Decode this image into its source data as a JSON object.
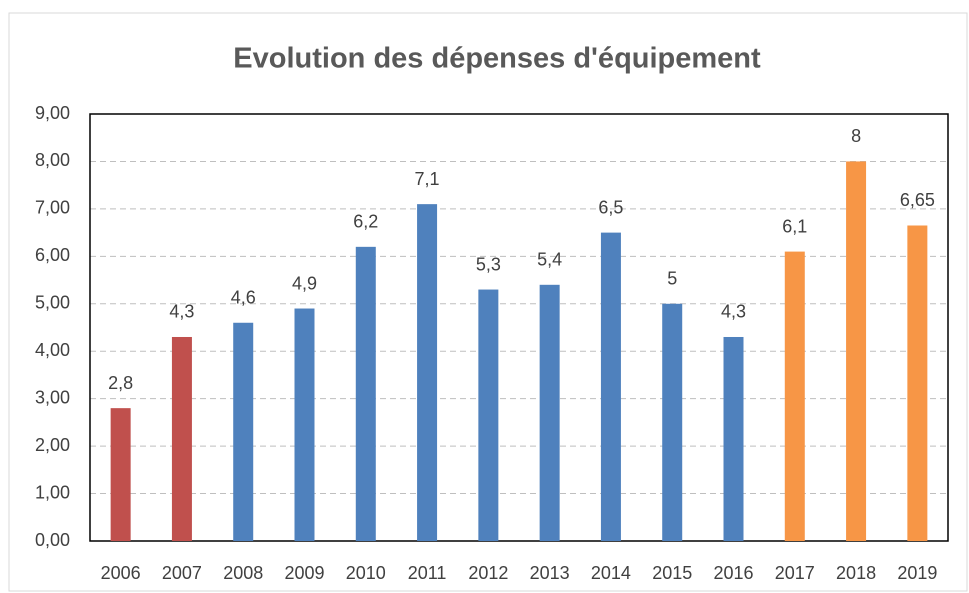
{
  "chart_data": {
    "type": "bar",
    "title": "Evolution des dépenses d'équipement",
    "categories": [
      "2006",
      "2007",
      "2008",
      "2009",
      "2010",
      "2011",
      "2012",
      "2013",
      "2014",
      "2015",
      "2016",
      "2017",
      "2018",
      "2019"
    ],
    "values": [
      2.8,
      4.3,
      4.6,
      4.9,
      6.2,
      7.1,
      5.3,
      5.4,
      6.5,
      5,
      4.3,
      6.1,
      8,
      6.65
    ],
    "value_labels": [
      "2,8",
      "4,3",
      "4,6",
      "4,9",
      "6,2",
      "7,1",
      "5,3",
      "5,4",
      "6,5",
      "5",
      "4,3",
      "6,1",
      "8",
      "6,65"
    ],
    "colors": [
      "#c0504d",
      "#c0504d",
      "#4f81bd",
      "#4f81bd",
      "#4f81bd",
      "#4f81bd",
      "#4f81bd",
      "#4f81bd",
      "#4f81bd",
      "#4f81bd",
      "#4f81bd",
      "#f79646",
      "#f79646",
      "#f79646"
    ],
    "ylim": [
      0,
      9
    ],
    "yticks": [
      {
        "value": 0,
        "label": "0,00"
      },
      {
        "value": 1,
        "label": "1,00"
      },
      {
        "value": 2,
        "label": "2,00"
      },
      {
        "value": 3,
        "label": "3,00"
      },
      {
        "value": 4,
        "label": "4,00"
      },
      {
        "value": 5,
        "label": "5,00"
      },
      {
        "value": 6,
        "label": "6,00"
      },
      {
        "value": 7,
        "label": "7,00"
      },
      {
        "value": 8,
        "label": "8,00"
      },
      {
        "value": 9,
        "label": "9,00"
      }
    ],
    "grid": true
  }
}
